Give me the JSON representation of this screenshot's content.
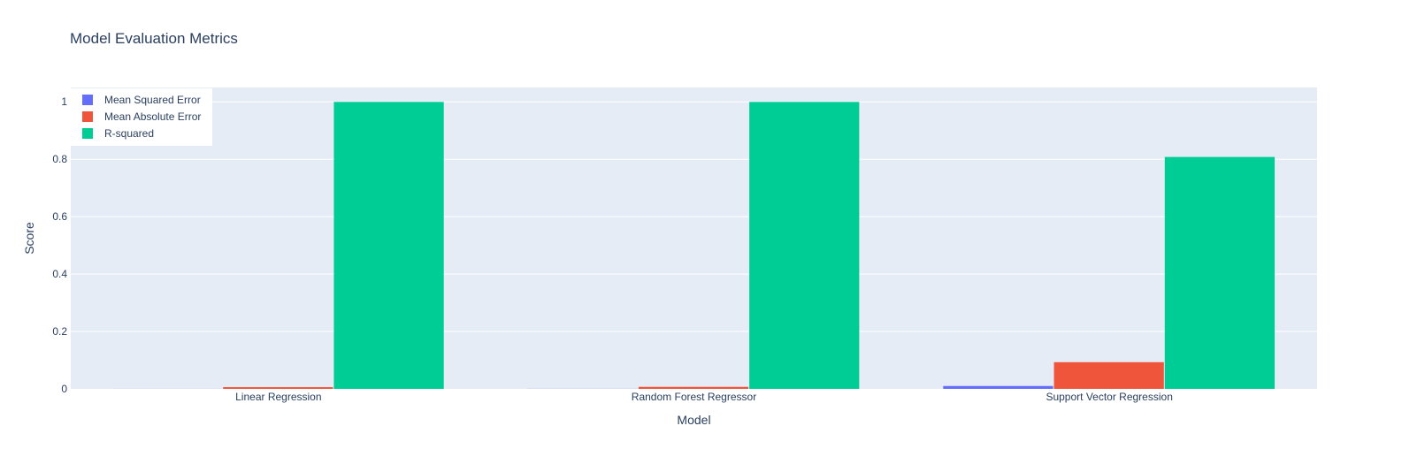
{
  "chart_data": {
    "type": "bar",
    "title": "Model Evaluation Metrics",
    "xlabel": "Model",
    "ylabel": "Score",
    "categories": [
      "Linear Regression",
      "Random Forest Regressor",
      "Support Vector Regression"
    ],
    "series": [
      {
        "name": "Mean Squared Error",
        "color": "#636efa",
        "values": [
          0.0002,
          0.0003,
          0.01
        ]
      },
      {
        "name": "Mean Absolute Error",
        "color": "#ef553b",
        "values": [
          0.006,
          0.007,
          0.093
        ]
      },
      {
        "name": "R-squared",
        "color": "#00cc96",
        "values": [
          0.9998,
          0.9997,
          0.808
        ]
      }
    ],
    "ylim": [
      0,
      1.05
    ],
    "yticks": [
      0,
      0.2,
      0.4,
      0.6,
      0.8,
      1
    ],
    "ytick_labels": [
      "0",
      "0.2",
      "0.4",
      "0.6",
      "0.8",
      "1"
    ],
    "grid": true,
    "legend_position": "top-left",
    "plot_background": "#e5ecf6"
  }
}
